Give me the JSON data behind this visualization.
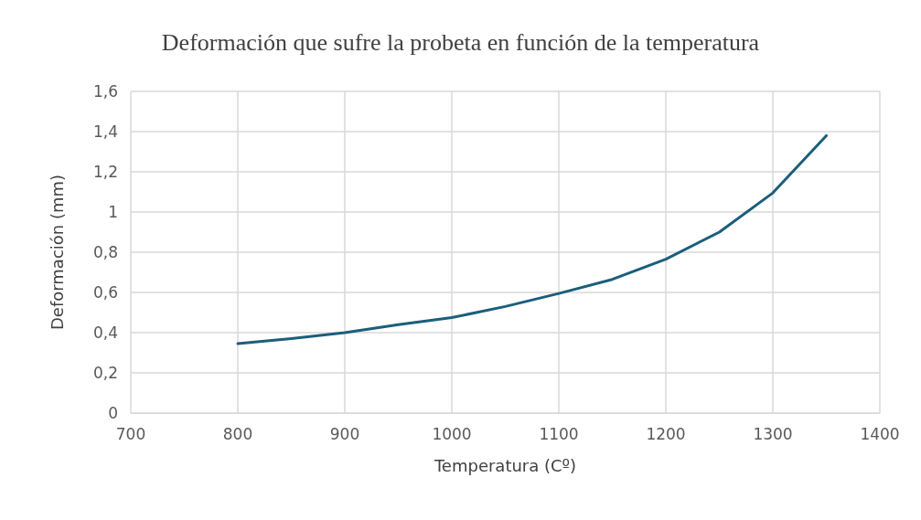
{
  "chart_data": {
    "type": "line",
    "title": "Deformación que sufre la probeta en función de la temperatura",
    "xlabel": "Temperatura (Cº)",
    "ylabel": "Deformación (mm)",
    "x": [
      800,
      850,
      900,
      950,
      1000,
      1050,
      1100,
      1150,
      1200,
      1250,
      1300,
      1350
    ],
    "series": [
      {
        "color": "#1b5e7b",
        "values": [
          0.345,
          0.37,
          0.4,
          0.44,
          0.475,
          0.53,
          0.595,
          0.665,
          0.765,
          0.9,
          1.095,
          1.38
        ]
      }
    ],
    "xlim": [
      700,
      1400
    ],
    "xticks": [
      700,
      800,
      900,
      1000,
      1100,
      1200,
      1300,
      1400
    ],
    "ylim": [
      0,
      1.6
    ],
    "yticks": [
      0,
      {
        "value": 0.2,
        "label": "0,2"
      },
      {
        "value": 0.4,
        "label": "0,4"
      },
      {
        "value": 0.6,
        "label": "0,6"
      },
      {
        "value": 0.8,
        "label": "0,8"
      },
      1,
      {
        "value": 1.2,
        "label": "1,2"
      },
      {
        "value": 1.4,
        "label": "1,4"
      },
      {
        "value": 1.6,
        "label": "1,6"
      }
    ],
    "grid": true,
    "marker": "none",
    "line_style": "solid"
  }
}
